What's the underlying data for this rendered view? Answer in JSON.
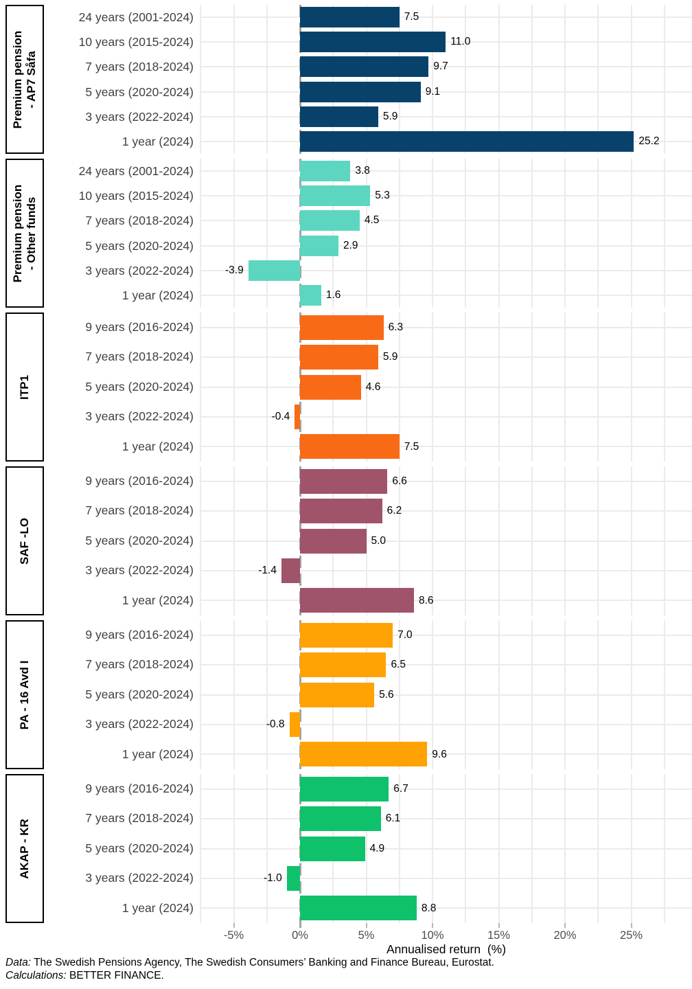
{
  "chart_data": {
    "type": "bar",
    "orientation": "horizontal",
    "xlabel": "Annualised return  (%)",
    "xlim": [
      -7.5,
      29.5
    ],
    "grid": {
      "minor_step": 2.5,
      "min": -7.5,
      "max": 27.5,
      "visible": true
    },
    "zero_line": true,
    "legend": "none",
    "x_ticks": [
      {
        "label": "-5%",
        "value": -5
      },
      {
        "label": "0%",
        "value": 0
      },
      {
        "label": "5%",
        "value": 5
      },
      {
        "label": "10%",
        "value": 10
      },
      {
        "label": "15%",
        "value": 15
      },
      {
        "label": "20%",
        "value": 20
      },
      {
        "label": "25%",
        "value": 25
      }
    ],
    "panels": [
      {
        "label_lines": [
          "Premium pension",
          "- AP7 Såfa"
        ],
        "color": "#08426b",
        "rows": [
          {
            "category": "24 years (2001-2024)",
            "value": 7.5,
            "label": "7.5"
          },
          {
            "category": "10 years (2015-2024)",
            "value": 11.0,
            "label": "11.0"
          },
          {
            "category": "7 years (2018-2024)",
            "value": 9.7,
            "label": "9.7"
          },
          {
            "category": "5 years (2020-2024)",
            "value": 9.1,
            "label": "9.1"
          },
          {
            "category": "3 years (2022-2024)",
            "value": 5.9,
            "label": "5.9"
          },
          {
            "category": "1 year (2024)",
            "value": 25.2,
            "label": "25.2"
          }
        ]
      },
      {
        "label_lines": [
          "Premium pension",
          "- Other funds"
        ],
        "color": "#5cd6c0",
        "rows": [
          {
            "category": "24 years (2001-2024)",
            "value": 3.8,
            "label": "3.8"
          },
          {
            "category": "10 years (2015-2024)",
            "value": 5.3,
            "label": "5.3"
          },
          {
            "category": "7 years (2018-2024)",
            "value": 4.5,
            "label": "4.5"
          },
          {
            "category": "5 years (2020-2024)",
            "value": 2.9,
            "label": "2.9"
          },
          {
            "category": "3 years (2022-2024)",
            "value": -3.9,
            "label": "-3.9"
          },
          {
            "category": "1 year (2024)",
            "value": 1.6,
            "label": "1.6"
          }
        ]
      },
      {
        "label_lines": [
          "ITP1"
        ],
        "color": "#f96a17",
        "rows": [
          {
            "category": "9 years (2016-2024)",
            "value": 6.3,
            "label": "6.3"
          },
          {
            "category": "7 years (2018-2024)",
            "value": 5.9,
            "label": "5.9"
          },
          {
            "category": "5 years (2020-2024)",
            "value": 4.6,
            "label": "4.6"
          },
          {
            "category": "3 years (2022-2024)",
            "value": -0.4,
            "label": "-0.4"
          },
          {
            "category": "1 year (2024)",
            "value": 7.5,
            "label": "7.5"
          }
        ]
      },
      {
        "label_lines": [
          "SAF -LO"
        ],
        "color": "#a0546a",
        "rows": [
          {
            "category": "9 years (2016-2024)",
            "value": 6.6,
            "label": "6.6"
          },
          {
            "category": "7 years (2018-2024)",
            "value": 6.2,
            "label": "6.2"
          },
          {
            "category": "5 years (2020-2024)",
            "value": 5.0,
            "label": "5.0"
          },
          {
            "category": "3 years (2022-2024)",
            "value": -1.4,
            "label": "-1.4"
          },
          {
            "category": "1 year (2024)",
            "value": 8.6,
            "label": "8.6"
          }
        ]
      },
      {
        "label_lines": [
          "PA - 16 Avd I"
        ],
        "color": "#fea303",
        "rows": [
          {
            "category": "9 years (2016-2024)",
            "value": 7.0,
            "label": "7.0"
          },
          {
            "category": "7 years (2018-2024)",
            "value": 6.5,
            "label": "6.5"
          },
          {
            "category": "5 years (2020-2024)",
            "value": 5.6,
            "label": "5.6"
          },
          {
            "category": "3 years (2022-2024)",
            "value": -0.8,
            "label": "-0.8"
          },
          {
            "category": "1 year (2024)",
            "value": 9.6,
            "label": "9.6"
          }
        ]
      },
      {
        "label_lines": [
          "AKAP - KR"
        ],
        "color": "#10c16b",
        "rows": [
          {
            "category": "9 years (2016-2024)",
            "value": 6.7,
            "label": "6.7"
          },
          {
            "category": "7 years (2018-2024)",
            "value": 6.1,
            "label": "6.1"
          },
          {
            "category": "5 years (2020-2024)",
            "value": 4.9,
            "label": "4.9"
          },
          {
            "category": "3 years (2022-2024)",
            "value": -1.0,
            "label": "-1.0"
          },
          {
            "category": "1 year (2024)",
            "value": 8.8,
            "label": "8.8"
          }
        ]
      }
    ]
  },
  "footnote": {
    "data_label": "Data:",
    "data_text": " The Swedish Pensions Agency, The Swedish Consumers’ Banking and Finance Bureau, Eurostat.",
    "calc_label": "Calculations:",
    "calc_text": " BETTER FINANCE."
  },
  "colors": {
    "gridline": "#ebebeb",
    "zero_line": "#a3a3a3",
    "category_label": "#404040",
    "tick_label": "#4d4d4d",
    "strip_border": "#000000",
    "background": "#ffffff"
  }
}
